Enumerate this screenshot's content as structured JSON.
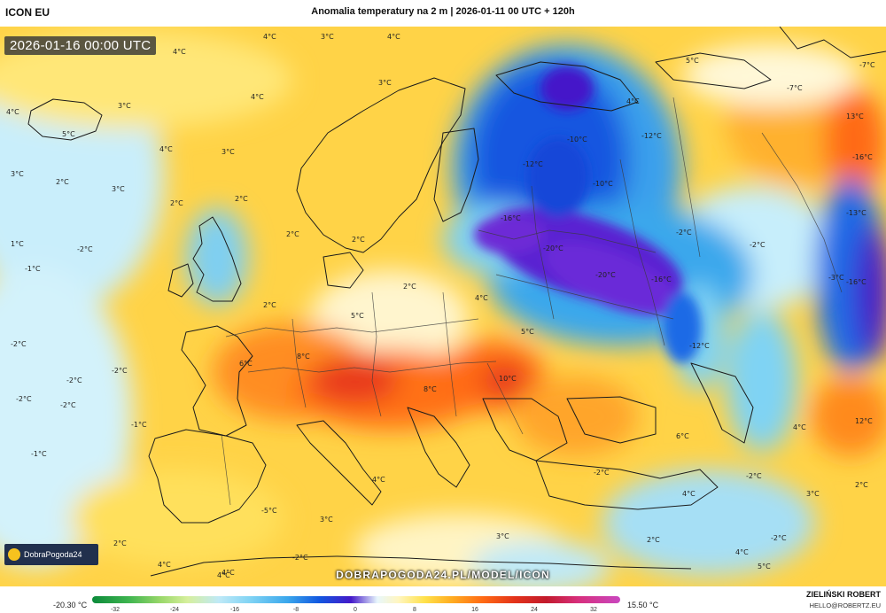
{
  "header": {
    "model": "ICON EU",
    "title": "Anomalia temperatury na 2 m | 2026-01-11 00 UTC + 120h"
  },
  "valid_time": "2026-01-16 00:00 UTC",
  "brand": {
    "name": "DobraPogoda24"
  },
  "watermark_url": "DOBRAPOGODA24.PL/MODEL/ICON",
  "legend": {
    "min": "-20.30 °C",
    "max": "15.50 °C",
    "ticks": [
      "-32",
      "-24",
      "-16",
      "-8",
      "0",
      "8",
      "16",
      "24",
      "32"
    ]
  },
  "author": {
    "name": "ZIELIŃSKI ROBERT",
    "email": "HELLO@ROBERTZ.EU"
  },
  "map_labels": [
    "4°C",
    "3°C",
    "4°C",
    "4°C",
    "3°C",
    "4°C",
    "3°C",
    "4°C",
    "5°C",
    "3°C",
    "3°C",
    "4°C",
    "3°C",
    "2°C",
    "2°C",
    "2°C",
    "2°C",
    "1°C",
    "-2°C",
    "-1°C",
    "2°C",
    "2°C",
    "-2°C",
    "-2°C",
    "-2°C",
    "-2°C",
    "-1°C",
    "-1°C",
    "-2°C",
    "6°C",
    "8°C",
    "5°C",
    "2°C",
    "4°C",
    "5°C",
    "8°C",
    "10°C",
    "-16°C",
    "-20°C",
    "-20°C",
    "-16°C",
    "-10°C",
    "-12°C",
    "-12°C",
    "-10°C",
    "-2°C",
    "-2°C",
    "-16°C",
    "-13°C",
    "-16°C",
    "-12°C",
    "-7°C",
    "-7°C",
    "13°C",
    "5°C",
    "4°C",
    "4°C",
    "2°C",
    "-5°C",
    "4°C",
    "3°C",
    "4°C",
    "-2°C",
    "4°C",
    "3°C",
    "-2°C",
    "4°C",
    "-2°C",
    "3°C",
    "-2°C",
    "4°C",
    "5°C",
    "2°C",
    "-3°C",
    "6°C",
    "2°C",
    "4°C",
    "12°C"
  ]
}
